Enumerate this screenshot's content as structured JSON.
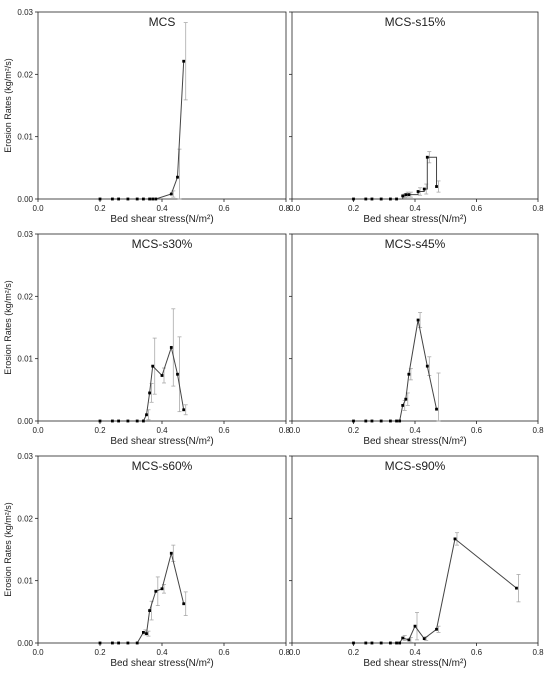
{
  "chart_data": {
    "type": "line",
    "layout": "3x2 small multiples",
    "xlabel": "Bed shear stress(N/m²)",
    "ylabel": "Erosion Rates (kg/m²/s)",
    "xlim": [
      0,
      0.8
    ],
    "ylim": [
      0,
      0.03
    ],
    "xticks": [
      "0.0",
      "0.2",
      "0.4",
      "0.6",
      "0.8"
    ],
    "yticks": [
      "0.00",
      "0.01",
      "0.02",
      "0.03"
    ],
    "grid": false,
    "colors": {
      "line": "#444444",
      "marker": "#000000",
      "errorbar": "#aaaaaa",
      "axis": "#222222"
    },
    "panels": [
      {
        "title": "MCS",
        "x": [
          0.2,
          0.24,
          0.26,
          0.29,
          0.32,
          0.34,
          0.36,
          0.37,
          0.38,
          0.43,
          0.45,
          0.47
        ],
        "y": [
          0,
          0,
          0,
          0,
          0,
          0,
          0,
          0,
          0,
          0.0008,
          0.0035,
          0.0221
        ],
        "err": [
          0,
          0,
          0,
          0,
          0,
          0,
          0,
          0,
          0,
          0.0005,
          0.0045,
          0.0062
        ]
      },
      {
        "title": "MCS-s15%",
        "x": [
          0.2,
          0.24,
          0.26,
          0.29,
          0.32,
          0.34,
          0.36,
          0.37,
          0.38,
          0.41,
          0.43,
          0.44,
          0.47
        ],
        "y": [
          0,
          0,
          0,
          0,
          0,
          0,
          0.0005,
          0.0007,
          0.0007,
          0.0012,
          0.0016,
          0.0067,
          0.002
        ],
        "err": [
          0,
          0,
          0,
          0,
          0,
          0,
          0.0003,
          0.0004,
          0.0004,
          0.0006,
          0.0008,
          0.0009,
          0.0009
        ],
        "xsteps": true
      },
      {
        "title": "MCS-s30%",
        "x": [
          0.2,
          0.24,
          0.26,
          0.29,
          0.32,
          0.34,
          0.35,
          0.36,
          0.37,
          0.4,
          0.43,
          0.45,
          0.47
        ],
        "y": [
          0,
          0,
          0,
          0,
          0,
          0,
          0.001,
          0.0045,
          0.0088,
          0.0073,
          0.0118,
          0.0075,
          0.0018
        ],
        "err": [
          0,
          0,
          0,
          0,
          0,
          0,
          0.0008,
          0.0015,
          0.0045,
          0.0012,
          0.0062,
          0.006,
          0.0008
        ]
      },
      {
        "title": "MCS-s45%",
        "x": [
          0.2,
          0.24,
          0.26,
          0.29,
          0.32,
          0.34,
          0.35,
          0.36,
          0.37,
          0.38,
          0.41,
          0.44,
          0.47
        ],
        "y": [
          0,
          0,
          0,
          0,
          0,
          0,
          0,
          0.0025,
          0.0035,
          0.0075,
          0.0162,
          0.0088,
          0.0019
        ],
        "err": [
          0,
          0,
          0,
          0,
          0,
          0,
          0,
          0.0008,
          0.001,
          0.0009,
          0.0012,
          0.0015,
          0.0058
        ]
      },
      {
        "title": "MCS-s60%",
        "x": [
          0.2,
          0.24,
          0.26,
          0.29,
          0.32,
          0.34,
          0.35,
          0.36,
          0.38,
          0.4,
          0.43,
          0.47
        ],
        "y": [
          0,
          0,
          0,
          0,
          0,
          0.0017,
          0.0015,
          0.0052,
          0.0083,
          0.0087,
          0.0144,
          0.0063
        ],
        "err": [
          0,
          0,
          0,
          0,
          0,
          0.0004,
          0.0004,
          0.0015,
          0.0023,
          0.0007,
          0.0013,
          0.0019
        ]
      },
      {
        "title": "MCS-s90%",
        "x": [
          0.2,
          0.24,
          0.26,
          0.29,
          0.32,
          0.34,
          0.35,
          0.36,
          0.38,
          0.4,
          0.43,
          0.47,
          0.53,
          0.73
        ],
        "y": [
          0,
          0,
          0,
          0,
          0,
          0,
          0,
          0.0008,
          0.0005,
          0.0027,
          0.0007,
          0.0022,
          0.0167,
          0.0088
        ],
        "err": [
          0,
          0,
          0,
          0,
          0,
          0,
          0,
          0.0004,
          0.0004,
          0.0022,
          0.0003,
          0.0005,
          0.001,
          0.0022
        ]
      }
    ]
  }
}
